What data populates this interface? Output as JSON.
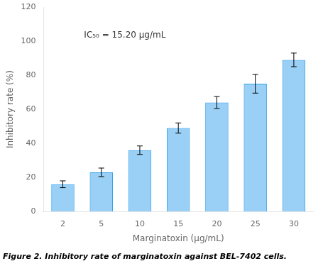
{
  "chart_data": {
    "type": "bar",
    "categories": [
      2,
      5,
      10,
      15,
      20,
      25,
      30
    ],
    "values": [
      16.0,
      23.0,
      36.0,
      49.0,
      64.0,
      75.0,
      89.0
    ],
    "errors": [
      2.0,
      2.5,
      2.5,
      3.0,
      3.5,
      5.5,
      4.0
    ],
    "xlabel": "Marginatoxin (μg/mL)",
    "ylabel": "Inhibitory rate (%)",
    "ylim": [
      0,
      120
    ],
    "yticks": [
      0,
      20,
      40,
      60,
      80,
      100,
      120
    ],
    "annotation": "IC₅₀ = 15.20 μg/mL",
    "caption": "Figure 2. Inhibitory rate of marginatoxin against BEL-7402 cells.",
    "grid": false,
    "legend": false
  }
}
